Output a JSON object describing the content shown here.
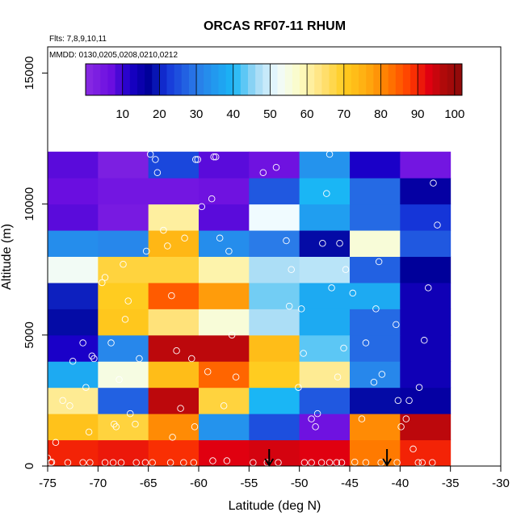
{
  "chart_data": {
    "type": "heatmap",
    "title": "ORCAS RF07-11 RHUM",
    "note_flights": "Flts: 7,8,9,10,11",
    "note_dates": "MMDD: 0130,0205,0208,0210,0212",
    "xlabel": "Latitude (deg N)",
    "ylabel": "Altitude (m)",
    "xlim": [
      -75,
      -30
    ],
    "ylim": [
      0,
      16000
    ],
    "x_ticks": [
      -75,
      -70,
      -65,
      -60,
      -55,
      -50,
      -45,
      -40,
      -35,
      -30
    ],
    "x_tick_labels": [
      "-75",
      "-70",
      "-65",
      "-60",
      "-55",
      "-50",
      "-45",
      "-40",
      "-35",
      "-30"
    ],
    "y_ticks": [
      0,
      5000,
      10000,
      15000
    ],
    "y_tick_labels": [
      "0",
      "5000",
      "10000",
      "15000"
    ],
    "colorbar": {
      "range": [
        0,
        102
      ],
      "ticks": [
        10,
        20,
        30,
        40,
        50,
        60,
        70,
        80,
        90,
        100
      ],
      "tick_labels": [
        "10",
        "20",
        "30",
        "40",
        "50",
        "60",
        "70",
        "80",
        "90",
        "100"
      ]
    },
    "x_edges": [
      -75,
      -70,
      -65,
      -60,
      -55,
      -50,
      -45,
      -40,
      -35
    ],
    "y_edges": [
      0,
      1000,
      2000,
      3000,
      4000,
      5000,
      6000,
      7000,
      8000,
      9000,
      10000,
      11000,
      12000
    ],
    "values": [
      [
        90,
        91,
        89,
        93,
        94,
        93,
        82,
        90
      ],
      [
        72,
        68,
        80,
        34,
        25,
        6,
        80,
        96
      ],
      [
        62,
        27,
        96,
        68,
        40,
        26,
        18,
        16
      ],
      [
        38,
        55,
        73,
        84,
        70,
        62,
        32,
        14
      ],
      [
        12,
        32,
        96,
        96,
        73,
        43,
        28,
        14
      ],
      [
        18,
        71,
        64,
        56,
        47,
        38,
        28,
        14
      ],
      [
        20,
        70,
        85,
        78,
        44,
        38,
        38,
        14
      ],
      [
        53,
        68,
        68,
        60,
        47,
        48,
        27,
        17
      ],
      [
        33,
        32,
        74,
        33,
        30,
        18,
        56,
        26
      ],
      [
        8,
        4,
        61,
        8,
        52,
        36,
        28,
        22
      ],
      [
        7,
        5,
        5,
        6,
        26,
        40,
        28,
        16
      ],
      [
        8,
        3,
        24,
        8,
        6,
        34,
        12,
        5
      ]
    ],
    "arrows_x": [
      -53,
      -41.3
    ],
    "points": [
      [
        -74.6,
        150
      ],
      [
        -74.2,
        900
      ],
      [
        -73.5,
        2500
      ],
      [
        -72.8,
        2300
      ],
      [
        -72.5,
        4000
      ],
      [
        -71.5,
        4700
      ],
      [
        -71.2,
        3000
      ],
      [
        -70.9,
        1300
      ],
      [
        -70.6,
        4200
      ],
      [
        -70.4,
        4100
      ],
      [
        -69.6,
        7000
      ],
      [
        -69.3,
        7200
      ],
      [
        -68.7,
        4700
      ],
      [
        -68.4,
        1600
      ],
      [
        -68.2,
        1500
      ],
      [
        -67.9,
        3300
      ],
      [
        -67.5,
        7700
      ],
      [
        -67.3,
        5600
      ],
      [
        -67.0,
        6300
      ],
      [
        -66.8,
        2000
      ],
      [
        -66.3,
        1600
      ],
      [
        -65.9,
        4100
      ],
      [
        -65.2,
        8200
      ],
      [
        -64.8,
        11900
      ],
      [
        -64.3,
        11700
      ],
      [
        -64.1,
        11200
      ],
      [
        -63.5,
        9000
      ],
      [
        -63.1,
        8400
      ],
      [
        -62.7,
        6500
      ],
      [
        -62.6,
        1100
      ],
      [
        -62.2,
        4400
      ],
      [
        -61.8,
        2200
      ],
      [
        -61.4,
        8700
      ],
      [
        -60.7,
        4100
      ],
      [
        -60.4,
        1500
      ],
      [
        -60.3,
        11700
      ],
      [
        -60.1,
        11700
      ],
      [
        -59.7,
        9900
      ],
      [
        -59.1,
        3600
      ],
      [
        -58.7,
        10200
      ],
      [
        -58.5,
        11800
      ],
      [
        -58.3,
        11800
      ],
      [
        -57.9,
        8700
      ],
      [
        -57.5,
        2300
      ],
      [
        -57.0,
        8200
      ],
      [
        -56.7,
        5000
      ],
      [
        -56.3,
        3400
      ],
      [
        -53.6,
        11200
      ],
      [
        -52.3,
        11400
      ],
      [
        -51.3,
        8600
      ],
      [
        -51.0,
        6100
      ],
      [
        -50.8,
        7500
      ],
      [
        -50.1,
        3000
      ],
      [
        -49.8,
        6000
      ],
      [
        -49.6,
        4300
      ],
      [
        -48.8,
        1800
      ],
      [
        -48.4,
        1500
      ],
      [
        -48.2,
        2000
      ],
      [
        -47.7,
        8500
      ],
      [
        -47.3,
        10400
      ],
      [
        -47.0,
        11900
      ],
      [
        -46.8,
        6800
      ],
      [
        -46.2,
        3400
      ],
      [
        -46.0,
        8500
      ],
      [
        -45.6,
        4500
      ],
      [
        -45.4,
        7500
      ],
      [
        -44.7,
        6600
      ],
      [
        -44.5,
        150
      ],
      [
        -43.8,
        1800
      ],
      [
        -43.4,
        4700
      ],
      [
        -42.6,
        3200
      ],
      [
        -42.4,
        6000
      ],
      [
        -42.1,
        7800
      ],
      [
        -41.8,
        3500
      ],
      [
        -40.4,
        5400
      ],
      [
        -40.2,
        2500
      ],
      [
        -39.9,
        1500
      ],
      [
        -39.4,
        1800
      ],
      [
        -39.1,
        2500
      ],
      [
        -38.7,
        650
      ],
      [
        -38.1,
        3000
      ],
      [
        -37.6,
        4800
      ],
      [
        -37.2,
        6800
      ],
      [
        -36.7,
        10800
      ],
      [
        -36.3,
        9200
      ]
    ],
    "bottom_points": [
      [
        -75,
        300
      ],
      [
        -74.7,
        130
      ],
      [
        -73.0,
        130
      ],
      [
        -71.5,
        130
      ],
      [
        -70.8,
        130
      ],
      [
        -69.3,
        130
      ],
      [
        -68.5,
        130
      ],
      [
        -67.7,
        130
      ],
      [
        -66.2,
        130
      ],
      [
        -65.3,
        130
      ],
      [
        -64.6,
        130
      ],
      [
        -62.8,
        130
      ],
      [
        -61.5,
        130
      ],
      [
        -60.5,
        130
      ],
      [
        -58.6,
        200
      ],
      [
        -57.2,
        200
      ],
      [
        -54.6,
        130
      ],
      [
        -53.2,
        130
      ],
      [
        -52.1,
        130
      ],
      [
        -49.5,
        130
      ],
      [
        -48.8,
        130
      ],
      [
        -47.8,
        130
      ],
      [
        -47.0,
        130
      ],
      [
        -46.3,
        130
      ],
      [
        -45.8,
        130
      ],
      [
        -43.4,
        130
      ],
      [
        -41.9,
        130
      ],
      [
        -40.3,
        130
      ],
      [
        -38.2,
        130
      ],
      [
        -37.8,
        130
      ],
      [
        -36.8,
        130
      ]
    ]
  }
}
